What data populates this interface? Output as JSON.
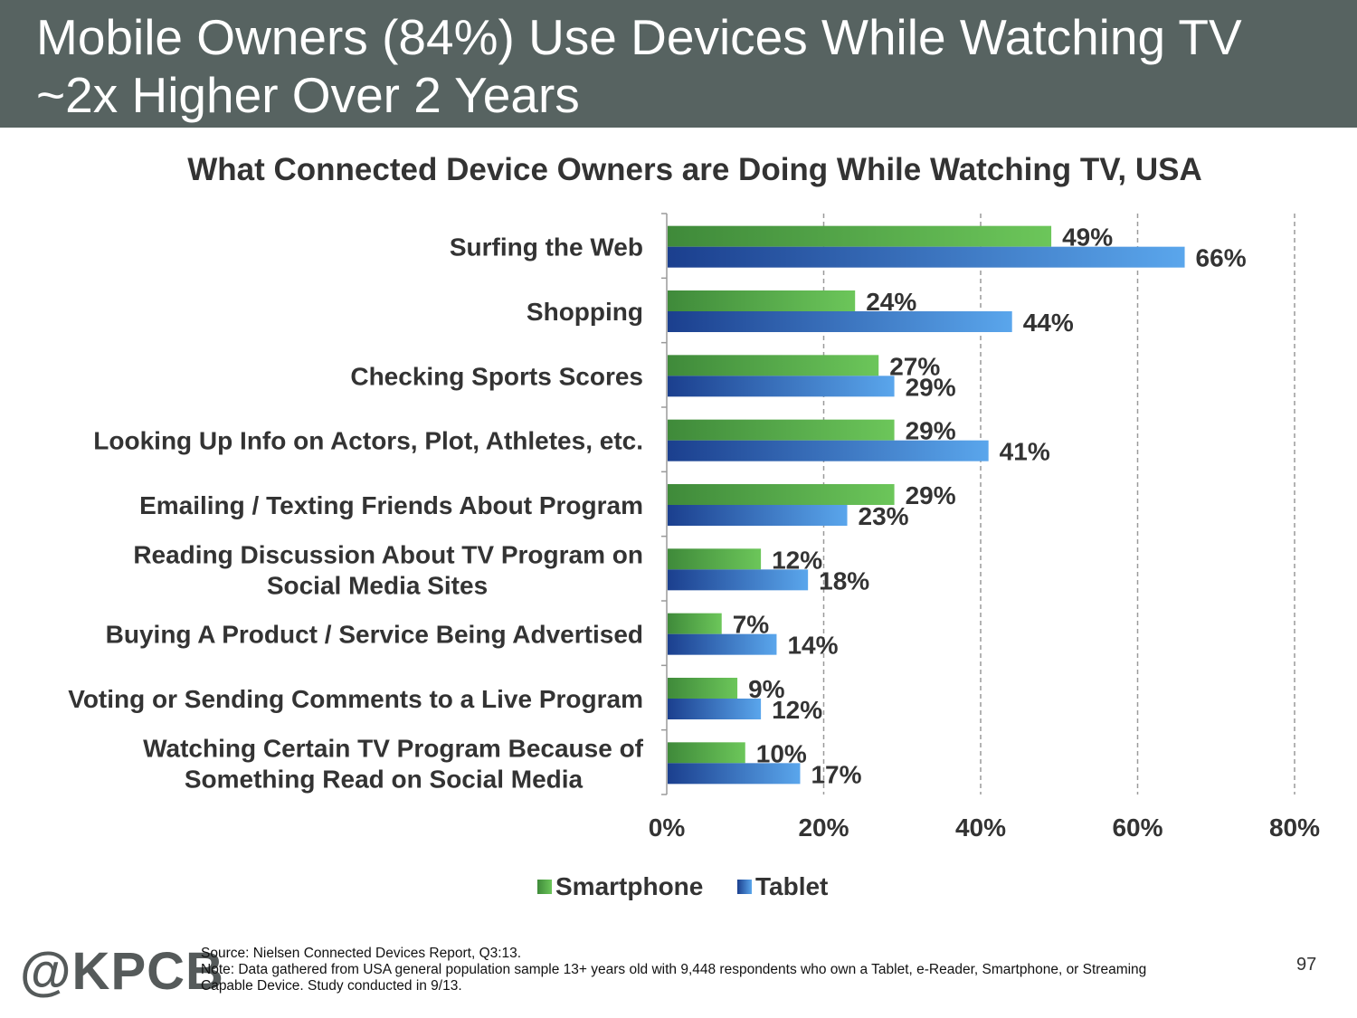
{
  "slide": {
    "title_line1": "Mobile Owners (84%) Use Devices While Watching TV",
    "title_line2": "~2x Higher Over 2 Years",
    "page_number": "97"
  },
  "colors": {
    "header_bg": "#576361",
    "smartphone": "#6cc65a",
    "smartphone_dark": "#3f8a3a",
    "tablet": "#5aa6ec",
    "tablet_dark": "#1b3f8e"
  },
  "chart_data": {
    "type": "bar",
    "orientation": "horizontal",
    "title": "What Connected Device Owners are Doing While Watching TV, USA",
    "categories": [
      [
        "Surfing the Web"
      ],
      [
        "Shopping"
      ],
      [
        "Checking Sports Scores"
      ],
      [
        "Looking Up Info on Actors, Plot, Athletes, etc."
      ],
      [
        "Emailing / Texting Friends About Program"
      ],
      [
        "Reading Discussion About TV Program on",
        "Social Media Sites"
      ],
      [
        "Buying A Product / Service Being Advertised"
      ],
      [
        "Voting or Sending Comments to a Live Program"
      ],
      [
        "Watching Certain TV Program Because of",
        "Something Read on Social Media"
      ]
    ],
    "series": [
      {
        "name": "Smartphone",
        "values": [
          49,
          24,
          27,
          29,
          29,
          12,
          7,
          9,
          10
        ],
        "labels": [
          "49%",
          "24%",
          "27%",
          "29%",
          "29%",
          "12%",
          "7%",
          "9%",
          "10%"
        ]
      },
      {
        "name": "Tablet",
        "values": [
          66,
          44,
          29,
          41,
          23,
          18,
          14,
          12,
          17
        ],
        "labels": [
          "66%",
          "44%",
          "29%",
          "41%",
          "23%",
          "18%",
          "14%",
          "12%",
          "17%"
        ]
      }
    ],
    "xlim": [
      0,
      80
    ],
    "xticks": [
      0,
      20,
      40,
      60,
      80
    ],
    "xtick_labels": [
      "0%",
      "20%",
      "40%",
      "60%",
      "80%"
    ],
    "grid": "vertical dashed",
    "legend_position": "bottom"
  },
  "footer": {
    "logo": "@KPCB",
    "source": "Source: Nielsen Connected Devices Report, Q3:13.",
    "note_line1": "Note: Data gathered from USA general population sample 13+ years old with 9,448 respondents who own a Tablet, e-Reader, Smartphone, or Streaming",
    "note_line2": "Capable Device. Study conducted in 9/13."
  }
}
